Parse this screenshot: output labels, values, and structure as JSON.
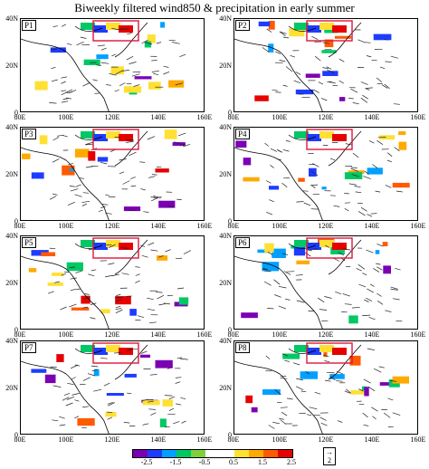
{
  "title": "Biweekly filtered wind850 & precipitation in early summer",
  "panels": [
    "P1",
    "P2",
    "P3",
    "P4",
    "P5",
    "P6",
    "P7",
    "P8"
  ],
  "lat_labels": [
    "40N",
    "20N",
    "0"
  ],
  "lon_labels": [
    "80E",
    "100E",
    "120E",
    "140E",
    "160E"
  ],
  "colorbar": {
    "labels": [
      "-2.5",
      "-1.5",
      "-0.5",
      "0.5",
      "1.5",
      "2.5"
    ],
    "colors": [
      "#7b00b4",
      "#1e3cff",
      "#00a0ff",
      "#00c864",
      "#7fd13b",
      "#ffffff",
      "#ffffff",
      "#ffe033",
      "#ffaa00",
      "#ff5a00",
      "#e60000"
    ]
  },
  "vector_reference": "2",
  "colors": {
    "box": "#e0143c",
    "coast": "#000000"
  }
}
